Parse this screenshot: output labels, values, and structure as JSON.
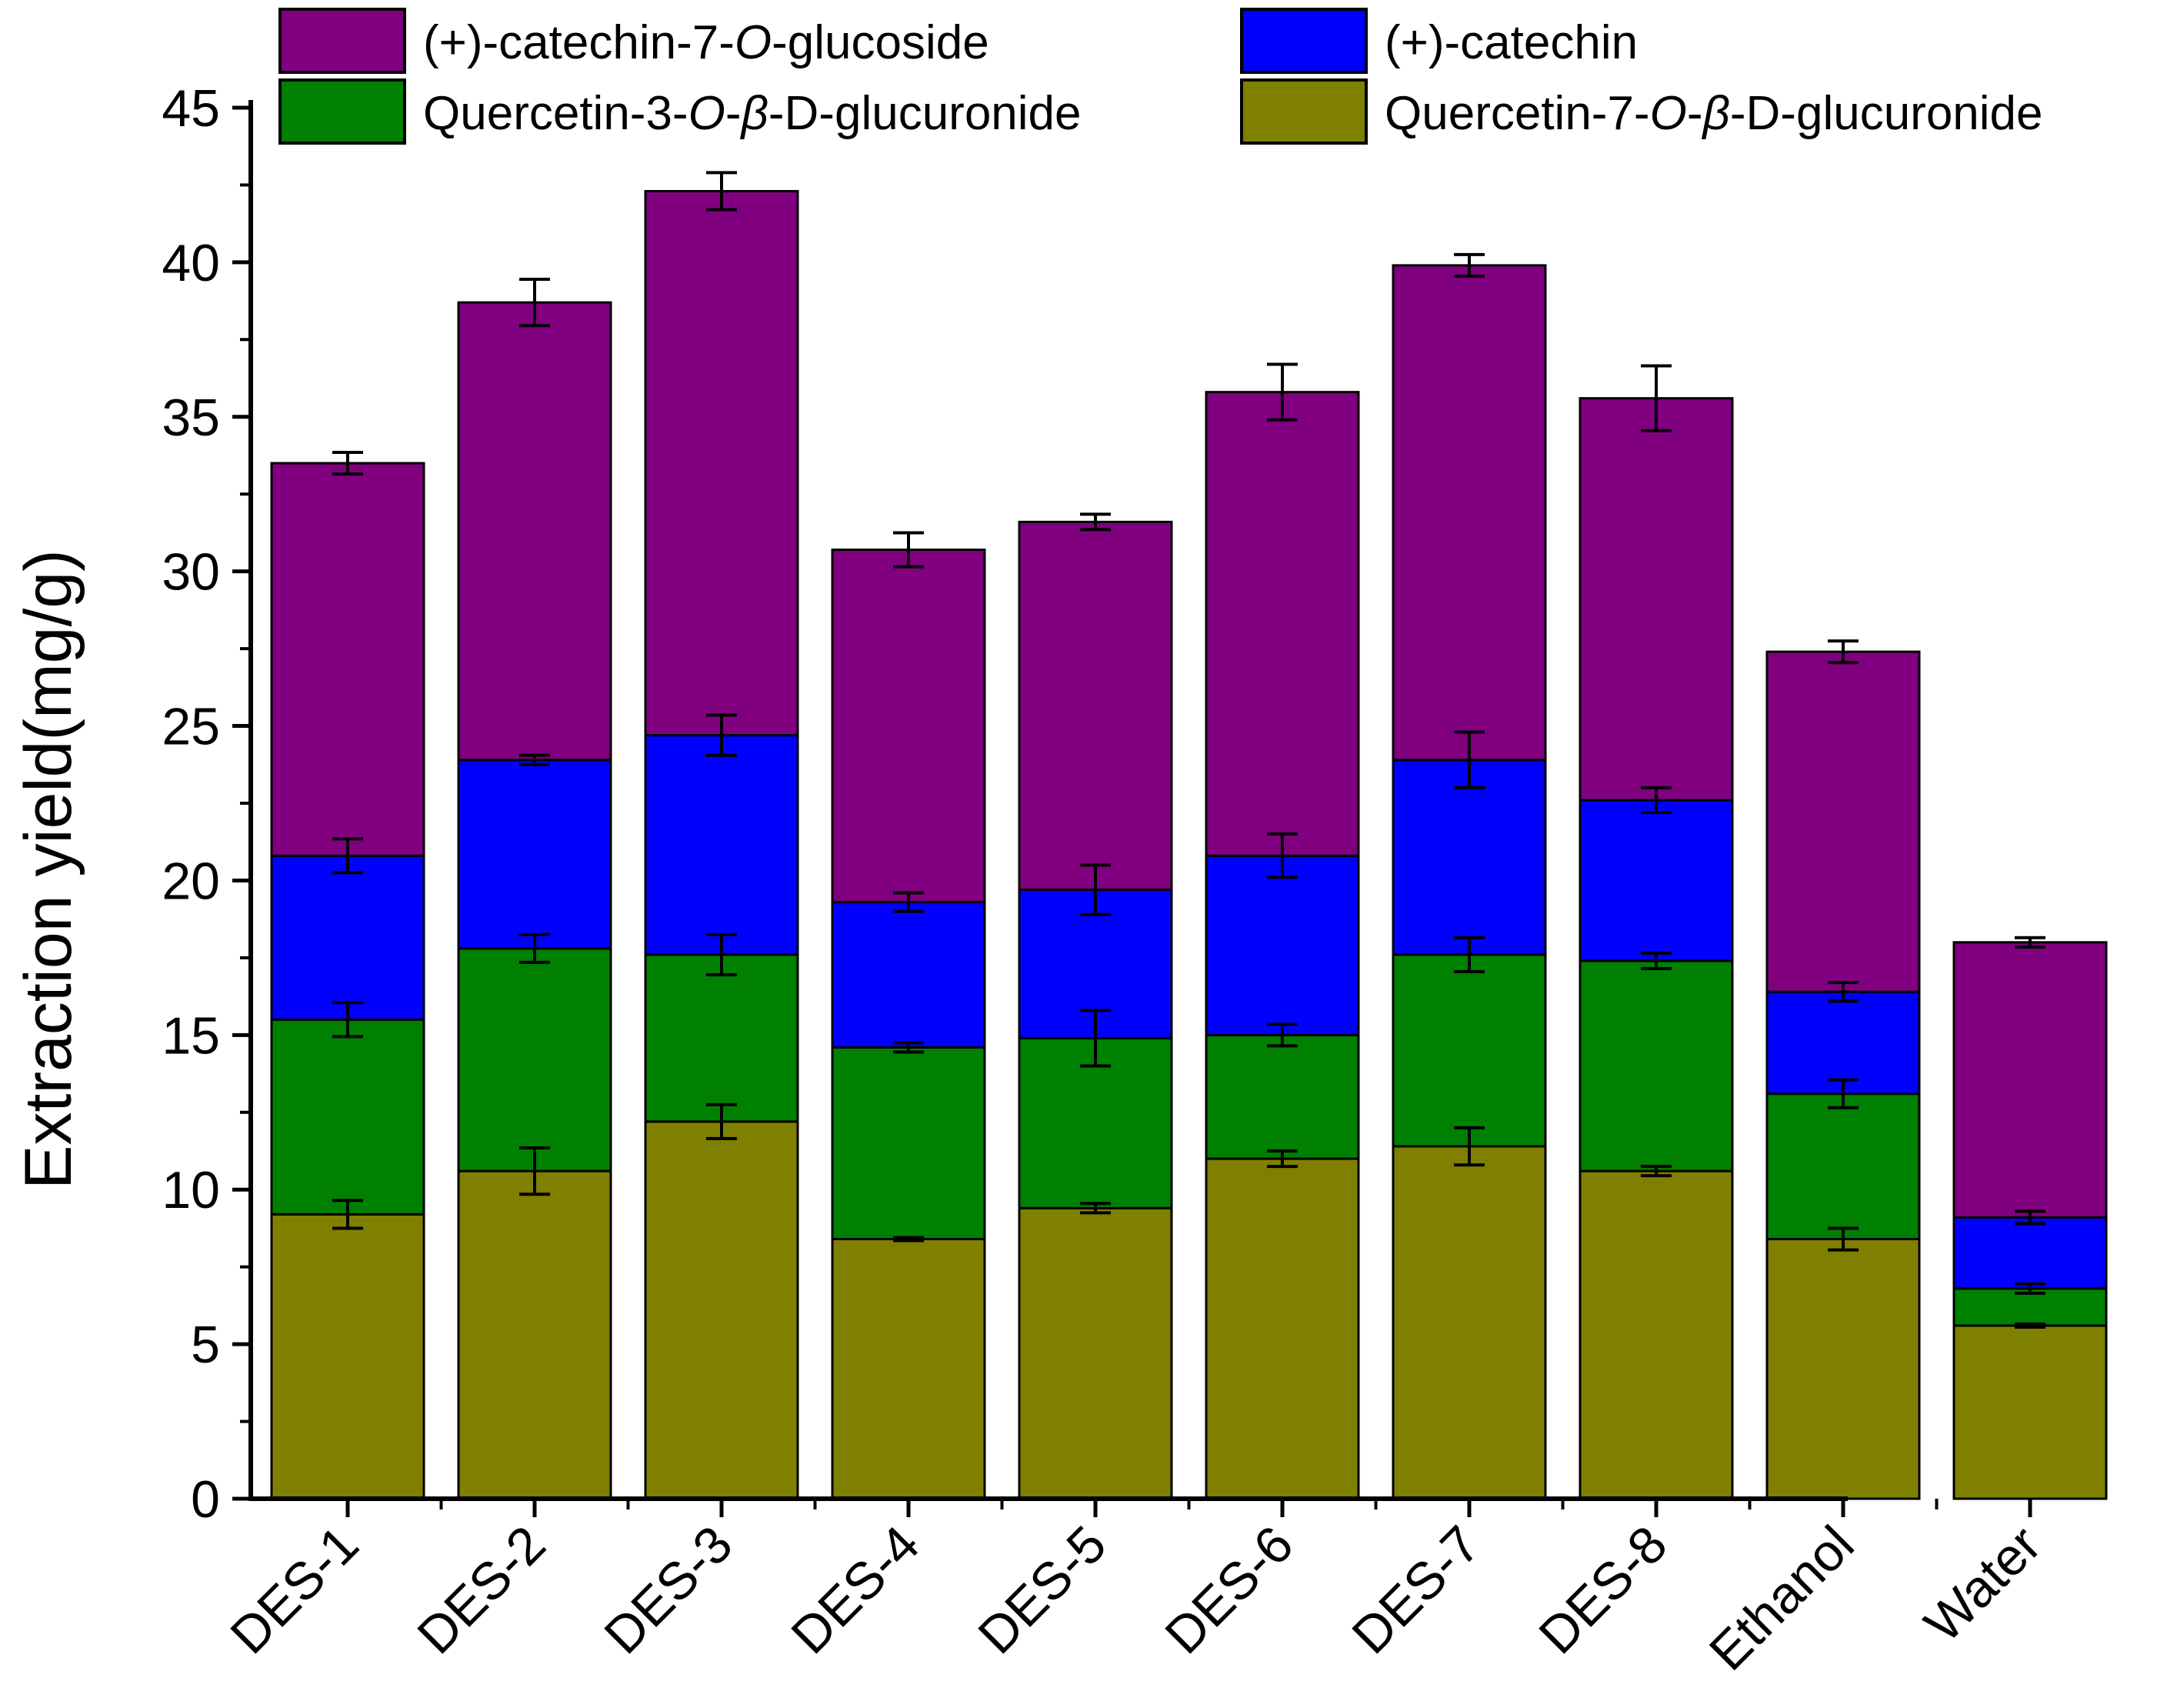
{
  "chart_data": {
    "type": "bar",
    "stacked": true,
    "categories": [
      "DES-1",
      "DES-2",
      "DES-3",
      "DES-4",
      "DES-5",
      "DES-6",
      "DES-7",
      "DES-8",
      "Ethanol",
      "Water"
    ],
    "series": [
      {
        "name": "Quercetin-7-O-β-D-glucuronide",
        "legend_parts": [
          "Quercetin-7-",
          "O",
          "-",
          "β",
          "-D-glucuronide"
        ],
        "color": "#808000",
        "values": [
          9.2,
          10.6,
          12.2,
          8.4,
          9.4,
          11.0,
          11.4,
          10.6,
          8.4,
          5.6
        ],
        "errors": [
          0.45,
          0.75,
          0.55,
          0.05,
          0.15,
          0.25,
          0.6,
          0.15,
          0.35,
          0.05
        ]
      },
      {
        "name": "Quercetin-3-O-β-D-glucuronide",
        "legend_parts": [
          "Quercetin-3-",
          "O",
          "-",
          "β",
          "-D-glucuronide"
        ],
        "color": "#008000",
        "values": [
          6.3,
          7.2,
          5.4,
          6.2,
          5.5,
          4.0,
          6.2,
          6.8,
          4.7,
          1.2
        ],
        "errors": [
          0.55,
          0.45,
          0.65,
          0.15,
          0.9,
          0.35,
          0.55,
          0.25,
          0.45,
          0.15
        ]
      },
      {
        "name": "(+)-catechin",
        "legend_parts": [
          "(+)-catechin"
        ],
        "color": "#0000FF",
        "values": [
          5.3,
          6.1,
          7.1,
          4.7,
          4.8,
          5.8,
          6.3,
          5.2,
          3.3,
          2.3
        ],
        "errors": [
          0.55,
          0.15,
          0.65,
          0.3,
          0.8,
          0.7,
          0.9,
          0.4,
          0.3,
          0.2
        ]
      },
      {
        "name": "(+)-catechin-7-O-glucoside",
        "legend_parts": [
          "(+)-catechin-7-",
          "O",
          "-glucoside"
        ],
        "color": "#800080",
        "values": [
          12.7,
          14.8,
          17.6,
          11.4,
          11.9,
          15.0,
          16.0,
          13.0,
          11.0,
          8.9
        ],
        "errors": [
          0.35,
          0.75,
          0.6,
          0.55,
          0.25,
          0.9,
          0.35,
          1.05,
          0.35,
          0.15
        ]
      }
    ],
    "legend_order": [
      3,
      2,
      1,
      0
    ],
    "ylabel": "Extraction yield(mg/g)",
    "xlabel": "",
    "ylim": [
      0,
      45
    ],
    "yticks": [
      0,
      5,
      10,
      15,
      20,
      25,
      30,
      35,
      40,
      45
    ],
    "legend_position": "top",
    "grid": false
  }
}
